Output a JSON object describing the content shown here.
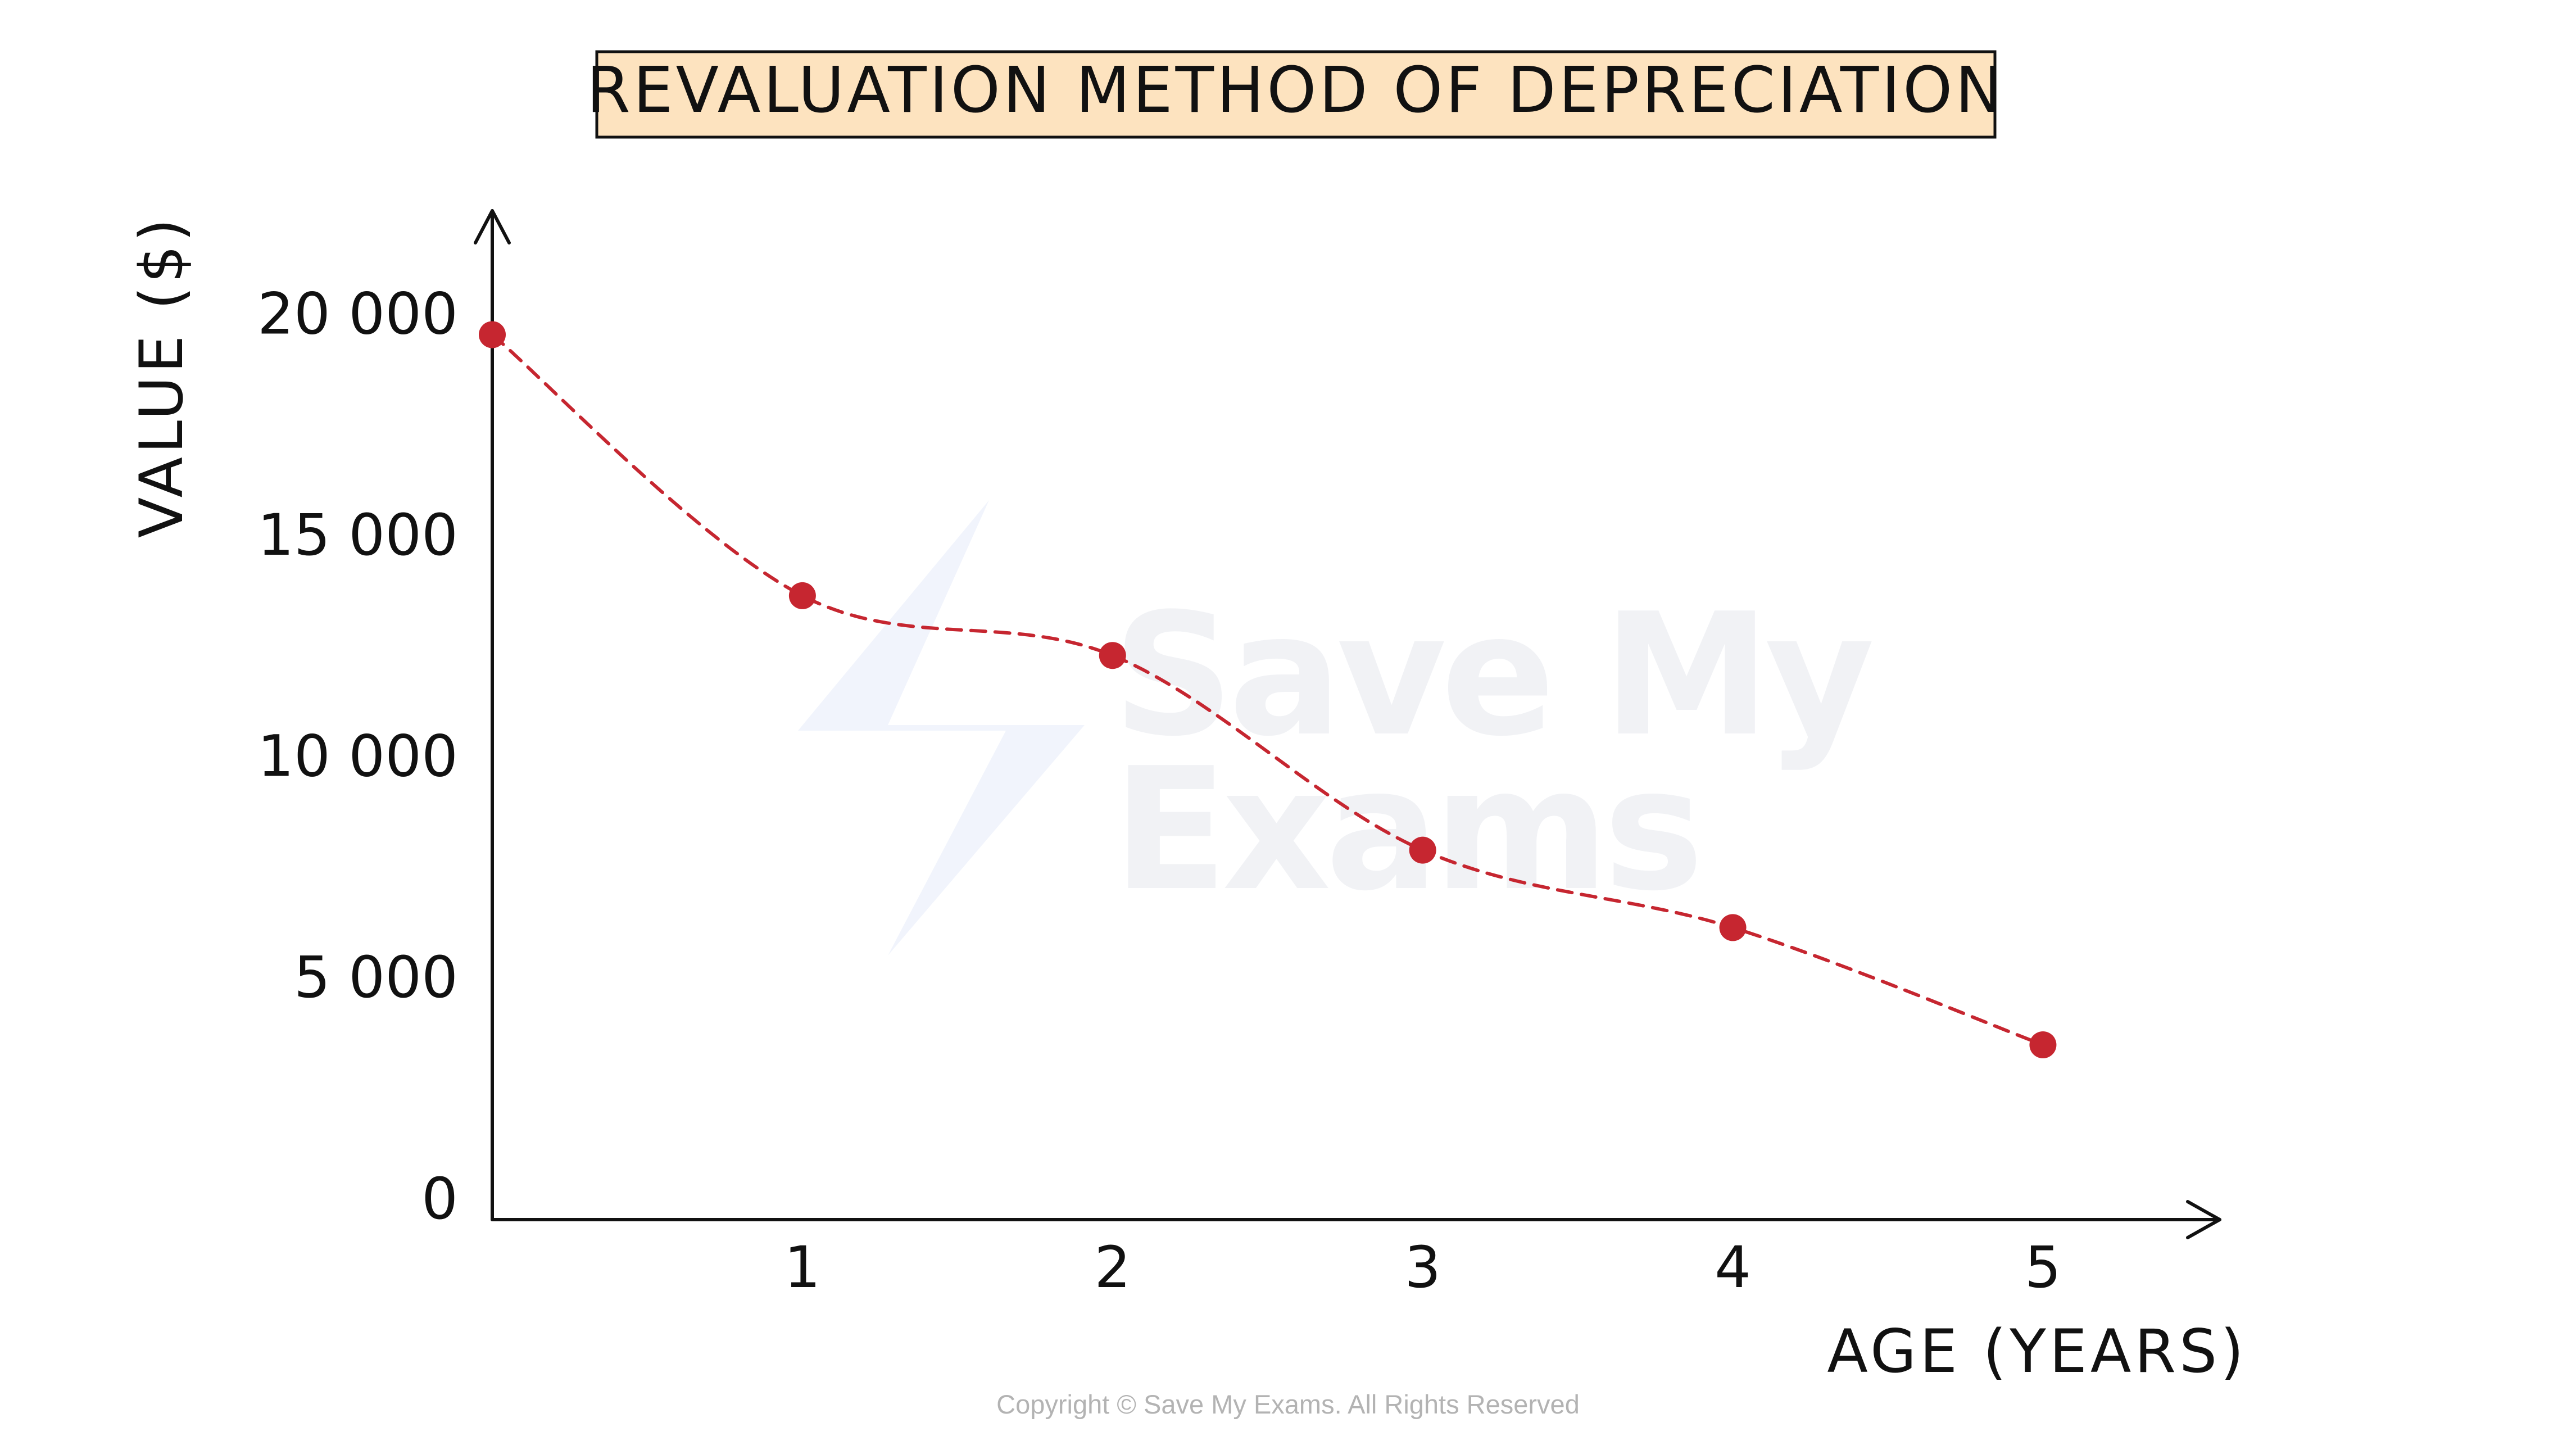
{
  "chart_data": {
    "type": "line",
    "title": "REVALUATION METHOD OF DEPRECIATION",
    "xlabel": "AGE (YEARS)",
    "ylabel": "VALUE ($)",
    "x": [
      0,
      1,
      2,
      3,
      4,
      5
    ],
    "series": [
      {
        "values": [
          20000,
          14100,
          12750,
          8350,
          6600,
          3950
        ]
      }
    ],
    "x_ticks": [
      "1",
      "2",
      "3",
      "4",
      "5"
    ],
    "y_ticks": [
      "0",
      "5 000",
      "10 000",
      "15 000",
      "20 000"
    ],
    "xlim": [
      0,
      5.57
    ],
    "ylim": [
      0,
      22800
    ],
    "grid": false,
    "legend": "none",
    "line_style": "dashed",
    "marker": "circle",
    "color": "#c62630"
  },
  "watermark": {
    "line1": "Save My",
    "line2": "Exams"
  },
  "footer": {
    "copyright": "Copyright © Save My Exams. All Rights Reserved"
  }
}
